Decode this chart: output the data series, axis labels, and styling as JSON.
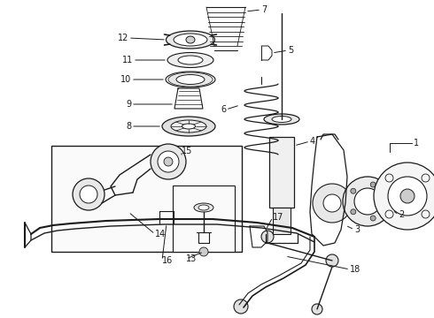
{
  "background_color": "#ffffff",
  "line_color": "#1a1a1a",
  "fig_width": 4.9,
  "fig_height": 3.6,
  "dpi": 100,
  "font_size": 7.0,
  "linewidth": 0.7
}
